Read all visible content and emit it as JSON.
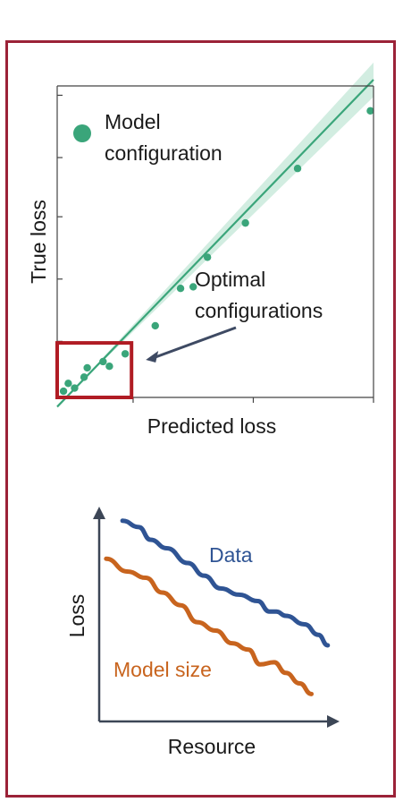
{
  "colors": {
    "frame": "#9b2238",
    "point": "#3aa57a",
    "band": "#bfe6d4",
    "highlight_box": "#b01c24",
    "arrow": "#3e4a63",
    "data_line": "#2f5494",
    "model_line": "#c8641e",
    "axis": "#3c4656"
  },
  "chart_data": [
    {
      "type": "scatter",
      "xlabel": "Predicted loss",
      "ylabel": "True loss",
      "legend": {
        "label": "Model configuration",
        "line1": "Model",
        "line2": "configuration",
        "placement": "top-left"
      },
      "annotation": {
        "line1": "Optimal",
        "line2": "configurations",
        "text": "Optimal configurations"
      },
      "grid": false,
      "xlim": [
        0,
        10
      ],
      "ylim": [
        0,
        10
      ],
      "xticks": [
        2.4,
        6.2,
        10
      ],
      "yticks": [
        1.8,
        3.8,
        5.8,
        7.7,
        9.7
      ],
      "fit_line": {
        "x": [
          0,
          10
        ],
        "y": [
          -0.3,
          10.2
        ]
      },
      "points": [
        {
          "x": 0.2,
          "y": 0.2
        },
        {
          "x": 0.35,
          "y": 0.45
        },
        {
          "x": 0.55,
          "y": 0.3
        },
        {
          "x": 0.85,
          "y": 0.65
        },
        {
          "x": 0.95,
          "y": 0.95
        },
        {
          "x": 1.45,
          "y": 1.15
        },
        {
          "x": 1.65,
          "y": 1.0
        },
        {
          "x": 2.15,
          "y": 1.4
        },
        {
          "x": 3.1,
          "y": 2.3
        },
        {
          "x": 3.9,
          "y": 3.5
        },
        {
          "x": 4.3,
          "y": 3.55
        },
        {
          "x": 4.75,
          "y": 4.5
        },
        {
          "x": 5.95,
          "y": 5.6
        },
        {
          "x": 7.6,
          "y": 7.35
        },
        {
          "x": 9.9,
          "y": 9.2
        }
      ],
      "highlight_region": {
        "x": [
          0,
          2.35
        ],
        "y": [
          0,
          1.75
        ]
      }
    },
    {
      "type": "line",
      "xlabel": "Resource",
      "ylabel": "Loss",
      "grid": false,
      "xlim": [
        0,
        10
      ],
      "ylim": [
        0,
        10
      ],
      "series": [
        {
          "name": "Data",
          "x": [
            1,
            1.7,
            2.2,
            2.9,
            3.8,
            4.5,
            5.2,
            6.0,
            6.8,
            7.3,
            7.6,
            8.0,
            8.8,
            9.4,
            9.8
          ],
          "y": [
            9.5,
            9.2,
            8.6,
            8.2,
            7.5,
            6.9,
            6.3,
            6.0,
            5.7,
            5.2,
            5.2,
            5.0,
            4.6,
            4.1,
            3.6
          ]
        },
        {
          "name": "Model size",
          "x": [
            0.3,
            1.2,
            2.0,
            2.7,
            3.5,
            4.2,
            5.0,
            5.7,
            6.4,
            6.9,
            7.5,
            8.0,
            8.6,
            9.1
          ],
          "y": [
            7.7,
            7.1,
            6.8,
            6.1,
            5.5,
            4.7,
            4.3,
            3.7,
            3.4,
            2.7,
            2.8,
            2.3,
            1.8,
            1.3
          ]
        }
      ]
    }
  ]
}
